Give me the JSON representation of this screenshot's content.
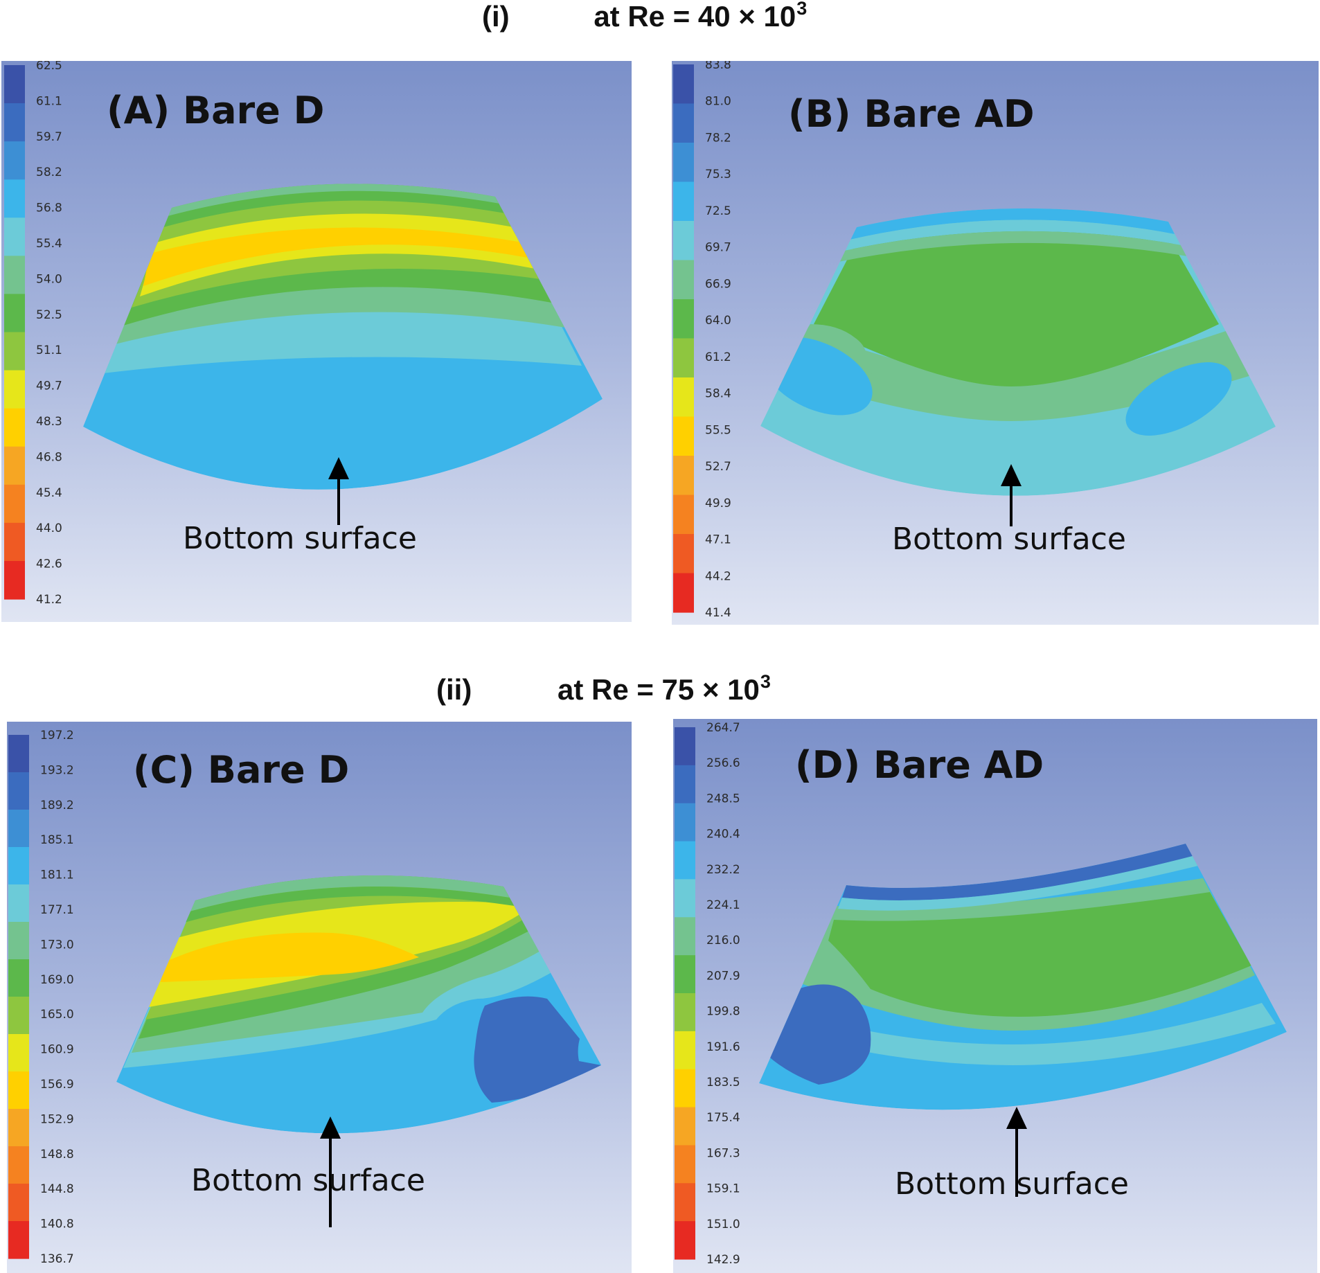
{
  "rows": [
    {
      "label": "(i)",
      "prefix": "at Re = 40 × 10",
      "exp": "3"
    },
    {
      "label": "(ii)",
      "prefix": "at Re = 75 × 10",
      "exp": "3"
    }
  ],
  "palette": [
    "#3a52a8",
    "#3b6cbf",
    "#3d8fd4",
    "#3cb5ea",
    "#6ccbd8",
    "#74c38f",
    "#5cb84b",
    "#8ec63f",
    "#e6e61a",
    "#ffd000",
    "#f6a623",
    "#f58220",
    "#ef5a23",
    "#e72a22"
  ],
  "panels": [
    {
      "title": "(A) Bare D",
      "surface_label": "Bottom surface",
      "legend": [
        "62.5",
        "61.1",
        "59.7",
        "58.2",
        "56.8",
        "55.4",
        "54.0",
        "52.5",
        "51.1",
        "49.7",
        "48.3",
        "46.8",
        "45.4",
        "44.0",
        "42.6",
        "41.2"
      ]
    },
    {
      "title": "(B) Bare AD",
      "surface_label": "Bottom surface",
      "legend": [
        "83.8",
        "81.0",
        "78.2",
        "75.3",
        "72.5",
        "69.7",
        "66.9",
        "64.0",
        "61.2",
        "58.4",
        "55.5",
        "52.7",
        "49.9",
        "47.1",
        "44.2",
        "41.4"
      ]
    },
    {
      "title": "(C) Bare D",
      "surface_label": "Bottom surface",
      "legend": [
        "197.2",
        "193.2",
        "189.2",
        "185.1",
        "181.1",
        "177.1",
        "173.0",
        "169.0",
        "165.0",
        "160.9",
        "156.9",
        "152.9",
        "148.8",
        "144.8",
        "140.8",
        "136.7"
      ]
    },
    {
      "title": "(D) Bare AD",
      "surface_label": "Bottom surface",
      "legend": [
        "264.7",
        "256.6",
        "248.5",
        "240.4",
        "232.2",
        "224.1",
        "216.0",
        "207.9",
        "199.8",
        "191.6",
        "183.5",
        "175.4",
        "167.3",
        "159.1",
        "151.0",
        "142.9"
      ]
    }
  ]
}
